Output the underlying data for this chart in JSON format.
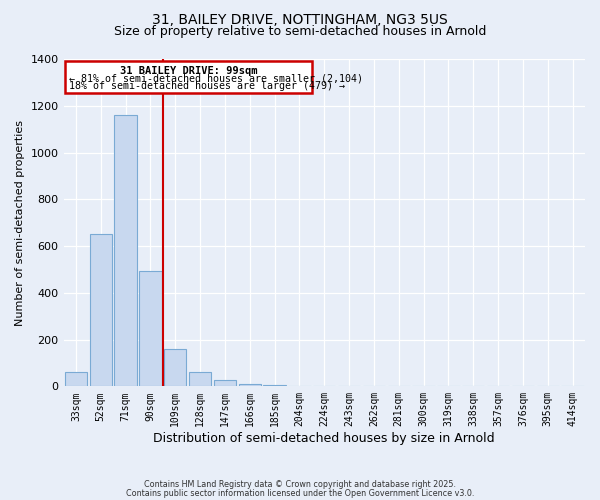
{
  "title": "31, BAILEY DRIVE, NOTTINGHAM, NG3 5US",
  "subtitle": "Size of property relative to semi-detached houses in Arnold",
  "xlabel": "Distribution of semi-detached houses by size in Arnold",
  "ylabel": "Number of semi-detached properties",
  "bar_labels": [
    "33sqm",
    "52sqm",
    "71sqm",
    "90sqm",
    "109sqm",
    "128sqm",
    "147sqm",
    "166sqm",
    "185sqm",
    "204sqm",
    "224sqm",
    "243sqm",
    "262sqm",
    "281sqm",
    "300sqm",
    "319sqm",
    "338sqm",
    "357sqm",
    "376sqm",
    "395sqm",
    "414sqm"
  ],
  "bar_values": [
    60,
    650,
    1160,
    495,
    160,
    62,
    25,
    12,
    5,
    2,
    1,
    0,
    0,
    0,
    0,
    0,
    0,
    0,
    0,
    0,
    0
  ],
  "bar_color": "#c8d8ef",
  "bar_edge_color": "#7aaad4",
  "vline_color": "#cc0000",
  "annotation_title": "31 BAILEY DRIVE: 99sqm",
  "annotation_line1": "← 81% of semi-detached houses are smaller (2,104)",
  "annotation_line2": "18% of semi-detached houses are larger (479) →",
  "annotation_box_edgecolor": "#cc0000",
  "annotation_fill": "#ffffff",
  "ylim": [
    0,
    1400
  ],
  "yticks": [
    0,
    200,
    400,
    600,
    800,
    1000,
    1200,
    1400
  ],
  "footer1": "Contains HM Land Registry data © Crown copyright and database right 2025.",
  "footer2": "Contains public sector information licensed under the Open Government Licence v3.0.",
  "bg_color": "#e8eef8",
  "plot_bg_color": "#e8eef8",
  "grid_color": "#ffffff",
  "title_fontsize": 10,
  "subtitle_fontsize": 9,
  "ylabel_fontsize": 8,
  "xlabel_fontsize": 9
}
